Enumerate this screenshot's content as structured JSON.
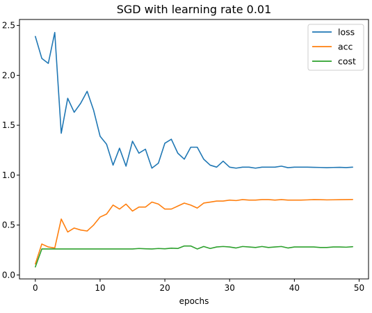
{
  "chart_data": {
    "type": "line",
    "title": "SGD with learning rate 0.01",
    "xlabel": "epochs",
    "ylabel": "",
    "xlim": [
      -2.45,
      51.45
    ],
    "ylim": [
      -0.04,
      2.56
    ],
    "xticks": [
      0,
      10,
      20,
      30,
      40,
      50
    ],
    "yticks": [
      0.0,
      0.5,
      1.0,
      1.5,
      2.0,
      2.5
    ],
    "ytick_labels": [
      "0.0",
      "0.5",
      "1.0",
      "1.5",
      "2.0",
      "2.5"
    ],
    "grid": false,
    "legend_position": "top-right",
    "x": [
      0,
      1,
      2,
      3,
      4,
      5,
      6,
      7,
      8,
      9,
      10,
      11,
      12,
      13,
      14,
      15,
      16,
      17,
      18,
      19,
      20,
      21,
      22,
      23,
      24,
      25,
      26,
      27,
      28,
      29,
      30,
      31,
      32,
      33,
      34,
      35,
      36,
      37,
      38,
      39,
      40,
      41,
      42,
      43,
      44,
      45,
      46,
      47,
      48,
      49
    ],
    "series": [
      {
        "name": "loss",
        "color": "#1f77b4",
        "values": [
          2.39,
          2.17,
          2.12,
          2.43,
          1.42,
          1.77,
          1.63,
          1.72,
          1.84,
          1.65,
          1.39,
          1.31,
          1.1,
          1.27,
          1.09,
          1.34,
          1.22,
          1.26,
          1.07,
          1.12,
          1.32,
          1.36,
          1.22,
          1.16,
          1.28,
          1.28,
          1.16,
          1.1,
          1.08,
          1.14,
          1.08,
          1.07,
          1.08,
          1.08,
          1.07,
          1.08,
          1.08,
          1.08,
          1.09,
          1.075,
          1.08,
          1.08,
          1.08,
          1.078,
          1.077,
          1.075,
          1.077,
          1.078,
          1.076,
          1.08
        ]
      },
      {
        "name": "acc",
        "color": "#ff7f0e",
        "values": [
          0.11,
          0.31,
          0.28,
          0.27,
          0.56,
          0.43,
          0.47,
          0.45,
          0.44,
          0.5,
          0.58,
          0.61,
          0.7,
          0.66,
          0.71,
          0.64,
          0.68,
          0.68,
          0.73,
          0.71,
          0.66,
          0.66,
          0.69,
          0.72,
          0.7,
          0.67,
          0.72,
          0.73,
          0.74,
          0.74,
          0.75,
          0.745,
          0.755,
          0.75,
          0.75,
          0.755,
          0.755,
          0.75,
          0.755,
          0.75,
          0.75,
          0.75,
          0.752,
          0.755,
          0.754,
          0.752,
          0.753,
          0.754,
          0.755,
          0.756
        ]
      },
      {
        "name": "cost",
        "color": "#2ca02c",
        "values": [
          0.08,
          0.26,
          0.26,
          0.26,
          0.26,
          0.26,
          0.26,
          0.26,
          0.26,
          0.26,
          0.26,
          0.26,
          0.26,
          0.26,
          0.26,
          0.26,
          0.265,
          0.262,
          0.26,
          0.265,
          0.262,
          0.268,
          0.265,
          0.29,
          0.29,
          0.26,
          0.285,
          0.265,
          0.28,
          0.285,
          0.28,
          0.27,
          0.285,
          0.28,
          0.275,
          0.285,
          0.275,
          0.28,
          0.285,
          0.27,
          0.28,
          0.28,
          0.28,
          0.28,
          0.275,
          0.275,
          0.28,
          0.28,
          0.278,
          0.283
        ]
      }
    ]
  }
}
